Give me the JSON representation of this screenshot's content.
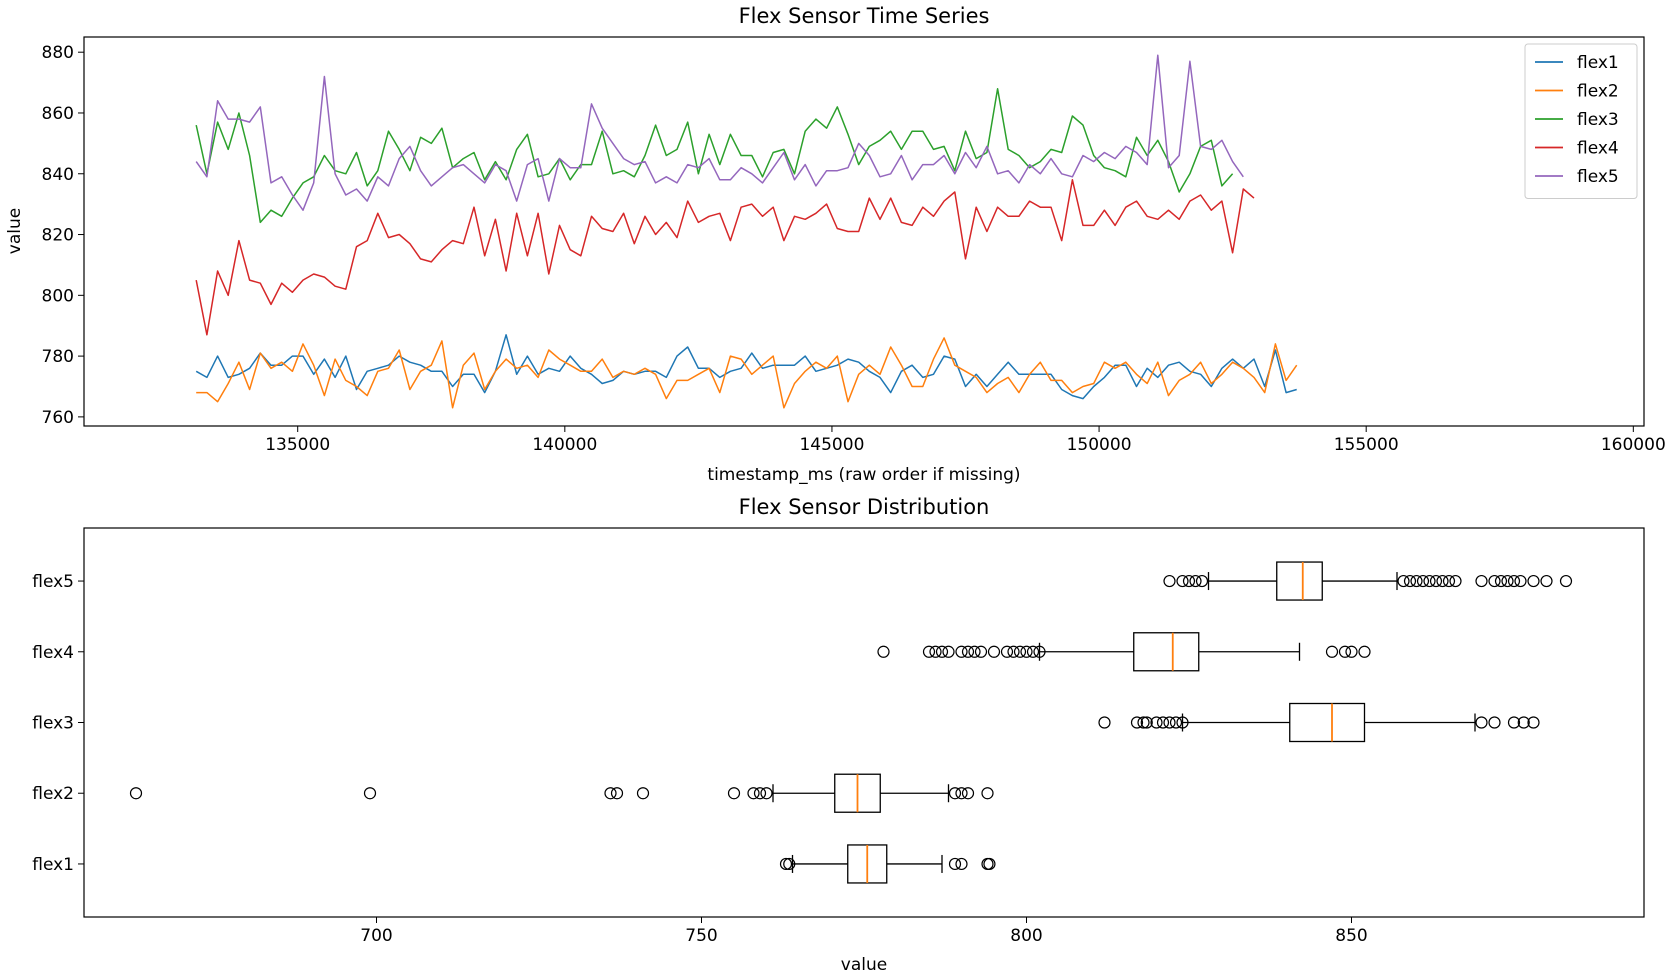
{
  "chart_data": [
    {
      "type": "line",
      "title": "Flex Sensor Time Series",
      "xlabel": "timestamp_ms (raw order if missing)",
      "ylabel": "value",
      "xlim": [
        131000,
        160200
      ],
      "ylim": [
        757,
        885
      ],
      "xticks": [
        135000,
        140000,
        145000,
        150000,
        155000,
        160000
      ],
      "yticks": [
        760,
        780,
        800,
        820,
        840,
        860,
        880
      ],
      "legend": "top-right",
      "x_start": 133100,
      "x_step": 200,
      "series": [
        {
          "name": "flex1",
          "color": "#1f77b4",
          "values": [
            775,
            773,
            780,
            773,
            774,
            776,
            781,
            777,
            777,
            780,
            780,
            774,
            779,
            773,
            780,
            769,
            775,
            776,
            777,
            780,
            778,
            777,
            775,
            775,
            770,
            774,
            774,
            768,
            775,
            787,
            774,
            780,
            774,
            776,
            775,
            780,
            776,
            774,
            771,
            772,
            775,
            774,
            775,
            775,
            773,
            780,
            783,
            776,
            776,
            773,
            775,
            776,
            781,
            776,
            777,
            777,
            777,
            780,
            775,
            776,
            777,
            779,
            778,
            775,
            773,
            768,
            775,
            777,
            773,
            774,
            780,
            779,
            770,
            774,
            770,
            774,
            778,
            774,
            774,
            774,
            774,
            769,
            767,
            766,
            770,
            773,
            777,
            777,
            770,
            776,
            773,
            777,
            778,
            775,
            774,
            770,
            776,
            779,
            776,
            779,
            770,
            782,
            768,
            769
          ]
        },
        {
          "name": "flex2",
          "color": "#ff7f0e",
          "values": [
            768,
            768,
            765,
            771,
            778,
            769,
            781,
            776,
            778,
            775,
            784,
            777,
            767,
            779,
            772,
            770,
            767,
            775,
            776,
            782,
            769,
            775,
            777,
            785,
            763,
            777,
            781,
            769,
            775,
            779,
            776,
            777,
            773,
            782,
            779,
            777,
            775,
            775,
            779,
            773,
            775,
            774,
            776,
            774,
            766,
            772,
            772,
            774,
            776,
            768,
            780,
            779,
            774,
            777,
            780,
            763,
            771,
            775,
            778,
            776,
            780,
            765,
            774,
            777,
            774,
            783,
            777,
            770,
            770,
            779,
            786,
            777,
            775,
            773,
            768,
            771,
            773,
            768,
            774,
            778,
            772,
            772,
            768,
            770,
            771,
            778,
            776,
            778,
            774,
            771,
            778,
            767,
            772,
            774,
            778,
            771,
            774,
            778,
            776,
            773,
            768,
            784,
            772,
            777
          ]
        },
        {
          "name": "flex3",
          "color": "#2ca02c",
          "values": [
            856,
            840,
            857,
            848,
            860,
            846,
            824,
            828,
            826,
            832,
            837,
            839,
            846,
            841,
            840,
            847,
            836,
            841,
            854,
            848,
            841,
            852,
            850,
            855,
            842,
            845,
            847,
            838,
            844,
            838,
            848,
            853,
            839,
            840,
            845,
            838,
            843,
            843,
            854,
            840,
            841,
            839,
            846,
            856,
            846,
            848,
            857,
            840,
            853,
            843,
            853,
            846,
            846,
            839,
            847,
            848,
            840,
            854,
            858,
            855,
            862,
            853,
            843,
            849,
            851,
            854,
            848,
            854,
            854,
            848,
            849,
            841,
            854,
            845,
            847,
            868,
            848,
            846,
            842,
            844,
            848,
            847,
            859,
            856,
            846,
            842,
            841,
            839,
            852,
            846,
            851,
            844,
            834,
            840,
            849,
            851,
            836,
            840
          ]
        },
        {
          "name": "flex4",
          "color": "#d62728",
          "values": [
            805,
            787,
            808,
            800,
            818,
            805,
            804,
            797,
            804,
            801,
            805,
            807,
            806,
            803,
            802,
            816,
            818,
            827,
            819,
            820,
            817,
            812,
            811,
            815,
            818,
            817,
            829,
            813,
            825,
            808,
            827,
            813,
            827,
            807,
            823,
            815,
            813,
            826,
            822,
            821,
            827,
            817,
            826,
            820,
            824,
            819,
            831,
            824,
            826,
            827,
            818,
            829,
            830,
            826,
            829,
            818,
            826,
            825,
            827,
            830,
            822,
            821,
            821,
            832,
            825,
            832,
            824,
            823,
            829,
            826,
            831,
            834,
            812,
            829,
            821,
            829,
            826,
            826,
            831,
            829,
            829,
            818,
            838,
            823,
            823,
            828,
            823,
            829,
            831,
            826,
            825,
            828,
            825,
            831,
            833,
            828,
            831,
            814,
            835,
            832
          ]
        },
        {
          "name": "flex5",
          "color": "#9467bd",
          "values": [
            844,
            839,
            864,
            858,
            858,
            857,
            862,
            837,
            839,
            833,
            828,
            837,
            872,
            840,
            833,
            835,
            831,
            839,
            836,
            845,
            849,
            841,
            836,
            839,
            842,
            843,
            840,
            837,
            843,
            841,
            831,
            843,
            845,
            831,
            845,
            842,
            842,
            863,
            855,
            850,
            845,
            843,
            844,
            837,
            839,
            837,
            843,
            842,
            845,
            838,
            838,
            842,
            840,
            837,
            842,
            847,
            838,
            843,
            836,
            841,
            841,
            842,
            850,
            846,
            839,
            840,
            846,
            838,
            843,
            843,
            846,
            840,
            847,
            842,
            849,
            840,
            841,
            837,
            843,
            840,
            845,
            840,
            839,
            846,
            844,
            847,
            845,
            849,
            847,
            843,
            879,
            842,
            846,
            877,
            849,
            848,
            851,
            844,
            839
          ]
        }
      ]
    },
    {
      "type": "box",
      "title": "Flex Sensor Distribution",
      "xlabel": "value",
      "ylabel": "",
      "xlim": [
        655,
        895
      ],
      "xticks": [
        700,
        750,
        800,
        850
      ],
      "categories": [
        "flex1",
        "flex2",
        "flex3",
        "flex4",
        "flex5"
      ],
      "median_color": "#ff7f0e",
      "series": [
        {
          "name": "flex1",
          "whisker_low": 764,
          "q1": 772.5,
          "median": 775.5,
          "q3": 778.5,
          "whisker_high": 787,
          "outliers": [
            763,
            763.5,
            789,
            790,
            794,
            794.3
          ]
        },
        {
          "name": "flex2",
          "whisker_low": 761,
          "q1": 770.5,
          "median": 774,
          "q3": 777.5,
          "whisker_high": 788,
          "outliers": [
            663,
            699,
            736,
            737,
            741,
            755,
            758,
            759,
            760,
            789,
            790,
            791,
            794
          ]
        },
        {
          "name": "flex3",
          "whisker_low": 824,
          "q1": 840.5,
          "median": 847,
          "q3": 852,
          "whisker_high": 869,
          "outliers": [
            812,
            817,
            818,
            818.5,
            820,
            821,
            822,
            823,
            824,
            870,
            872,
            875,
            876.5,
            878
          ]
        },
        {
          "name": "flex4",
          "whisker_low": 802,
          "q1": 816.5,
          "median": 822.5,
          "q3": 826.5,
          "whisker_high": 842,
          "outliers": [
            778,
            785,
            786,
            787,
            788,
            790,
            791,
            792,
            793,
            795,
            797,
            798,
            799,
            800,
            801,
            802,
            847,
            849,
            850,
            852
          ]
        },
        {
          "name": "flex5",
          "whisker_low": 828,
          "q1": 838.5,
          "median": 842.5,
          "q3": 845.5,
          "whisker_high": 857,
          "outliers": [
            822,
            824,
            825,
            826,
            827,
            858,
            859,
            860,
            861,
            862,
            863,
            864,
            865,
            866,
            870,
            872,
            873,
            874,
            875,
            876,
            878,
            880,
            883
          ]
        }
      ]
    }
  ]
}
